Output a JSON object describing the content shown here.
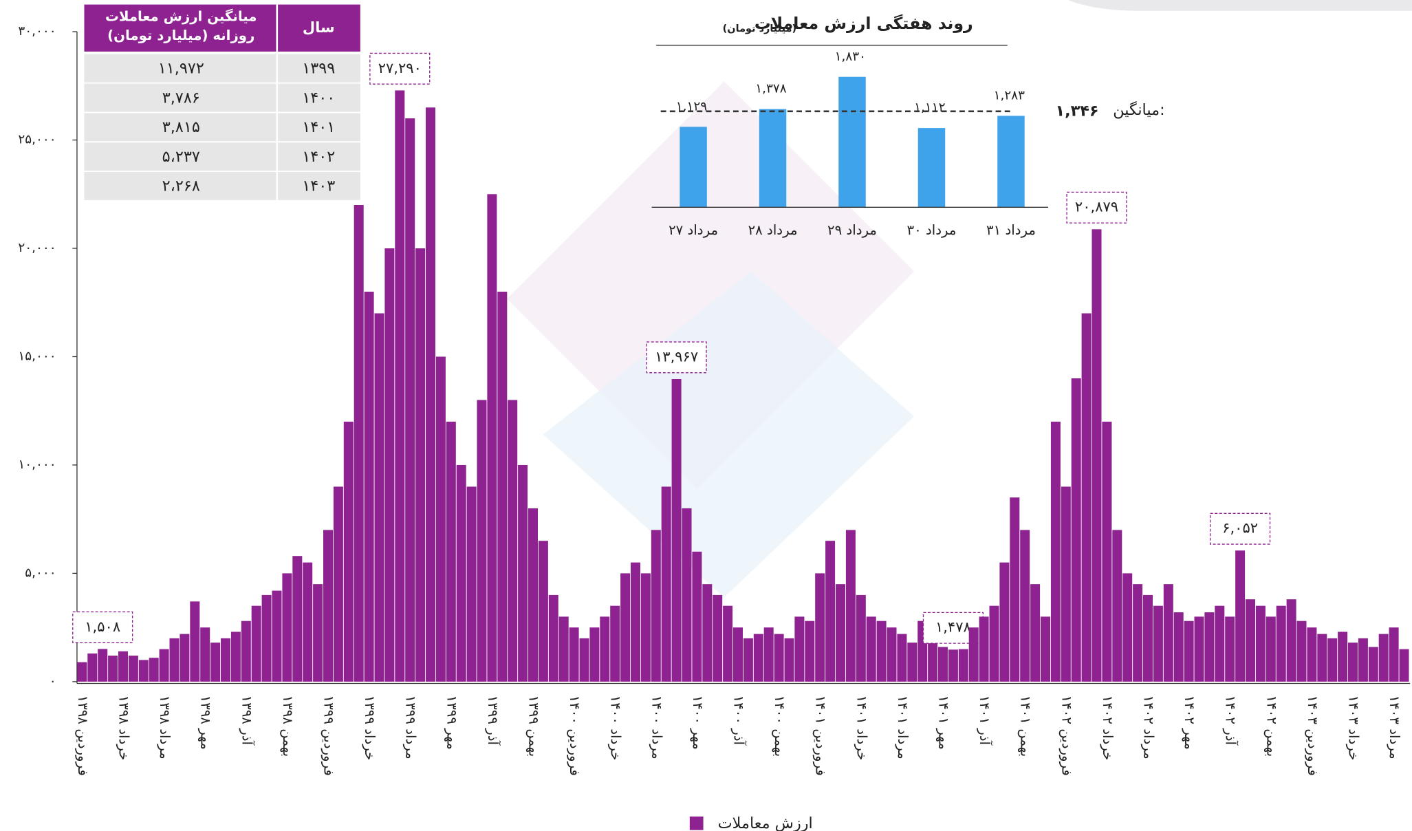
{
  "chart_data": [
    {
      "type": "bar",
      "legend": "bottom",
      "ylim": [
        0,
        30000
      ],
      "yticks": [
        {
          "value": 0,
          "label": "۰"
        },
        {
          "value": 5000,
          "label": "۵,۰۰۰"
        },
        {
          "value": 10000,
          "label": "۱۰,۰۰۰"
        },
        {
          "value": 15000,
          "label": "۱۵,۰۰۰"
        },
        {
          "value": 20000,
          "label": "۲۰,۰۰۰"
        },
        {
          "value": 25000,
          "label": "۲۵,۰۰۰"
        },
        {
          "value": 30000,
          "label": "۳۰,۰۰۰"
        }
      ],
      "categories": [
        "فروردین ۱۳۹۸",
        null,
        null,
        null,
        "خرداد ۱۳۹۸",
        null,
        null,
        null,
        "مرداد ۱۳۹۸",
        null,
        null,
        null,
        "مهر ۱۳۹۸",
        null,
        null,
        null,
        "آذر ۱۳۹۸",
        null,
        null,
        null,
        "بهمن ۱۳۹۸",
        null,
        null,
        null,
        "فروردین ۱۳۹۹",
        null,
        null,
        null,
        "خرداد ۱۳۹۹",
        null,
        null,
        null,
        "مرداد ۱۳۹۹",
        null,
        null,
        null,
        "مهر ۱۳۹۹",
        null,
        null,
        null,
        "آذر ۱۳۹۹",
        null,
        null,
        null,
        "بهمن ۱۳۹۹",
        null,
        null,
        null,
        "فروردین ۱۴۰۰",
        null,
        null,
        null,
        "خرداد ۱۴۰۰",
        null,
        null,
        null,
        "مرداد ۱۴۰۰",
        null,
        null,
        null,
        "مهر ۱۴۰۰",
        null,
        null,
        null,
        "آذر ۱۴۰۰",
        null,
        null,
        null,
        "بهمن ۱۴۰۰",
        null,
        null,
        null,
        "فروردین ۱۴۰۱",
        null,
        null,
        null,
        "خرداد ۱۴۰۱",
        null,
        null,
        null,
        "مرداد ۱۴۰۱",
        null,
        null,
        null,
        "مهر ۱۴۰۱",
        null,
        null,
        null,
        "آذر ۱۴۰۱",
        null,
        null,
        null,
        "بهمن ۱۴۰۱",
        null,
        null,
        null,
        "فروردین ۱۴۰۲",
        null,
        null,
        null,
        "خرداد ۱۴۰۲",
        null,
        null,
        null,
        "مرداد ۱۴۰۲",
        null,
        null,
        null,
        "مهر ۱۴۰۲",
        null,
        null,
        null,
        "آذر ۱۴۰۲",
        null,
        null,
        null,
        "بهمن ۱۴۰۲",
        null,
        null,
        null,
        "فروردین ۱۴۰۳",
        null,
        null,
        null,
        "خرداد ۱۴۰۳",
        null,
        null,
        null,
        "مرداد ۱۴۰۳",
        null
      ],
      "series": [
        {
          "name": "ارزش معاملات",
          "color": "#8e2290",
          "values": [
            900,
            1300,
            1508,
            1200,
            1400,
            1200,
            1000,
            1100,
            1500,
            2000,
            2200,
            3700,
            2500,
            1800,
            2000,
            2300,
            2800,
            3500,
            4000,
            4200,
            5000,
            5800,
            5500,
            4500,
            7000,
            9000,
            12000,
            22000,
            18000,
            17000,
            20000,
            27290,
            26000,
            20000,
            26500,
            15000,
            12000,
            10000,
            9000,
            13000,
            22500,
            18000,
            13000,
            10000,
            8000,
            6500,
            4000,
            3000,
            2500,
            2000,
            2500,
            3000,
            3500,
            5000,
            5500,
            5000,
            7000,
            9000,
            13967,
            8000,
            6000,
            4500,
            4000,
            3500,
            2500,
            2000,
            2200,
            2500,
            2200,
            2000,
            3000,
            2800,
            5000,
            6500,
            4500,
            7000,
            4000,
            3000,
            2800,
            2500,
            2200,
            1800,
            2800,
            2000,
            1600,
            1478,
            1500,
            2500,
            3000,
            3500,
            5500,
            8500,
            7000,
            4500,
            3000,
            12000,
            9000,
            14000,
            17000,
            20879,
            12000,
            7000,
            5000,
            4500,
            4000,
            3500,
            4500,
            3200,
            2800,
            3000,
            3200,
            3500,
            3000,
            6052,
            3800,
            3500,
            3000,
            3500,
            3800,
            2800,
            2500,
            2200,
            2000,
            2300,
            1800,
            2000,
            1600,
            2200,
            2500,
            1500
          ],
          "value_labels": [
            null,
            null,
            "۱,۵۰۸",
            null,
            null,
            null,
            null,
            null,
            null,
            null,
            null,
            null,
            null,
            null,
            null,
            null,
            null,
            null,
            null,
            null,
            null,
            null,
            null,
            null,
            null,
            null,
            null,
            null,
            null,
            null,
            null,
            "۲۷,۲۹۰",
            null,
            null,
            null,
            null,
            null,
            null,
            null,
            null,
            null,
            null,
            null,
            null,
            null,
            null,
            null,
            null,
            null,
            null,
            null,
            null,
            null,
            null,
            null,
            null,
            null,
            null,
            "۱۳,۹۶۷",
            null,
            null,
            null,
            null,
            null,
            null,
            null,
            null,
            null,
            null,
            null,
            null,
            null,
            null,
            null,
            null,
            null,
            null,
            null,
            null,
            null,
            null,
            null,
            null,
            null,
            null,
            "۱,۴۷۸",
            null,
            null,
            null,
            null,
            null,
            null,
            null,
            null,
            null,
            null,
            null,
            null,
            null,
            "۲۰,۸۷۹",
            null,
            null,
            null,
            null,
            null,
            null,
            null,
            null,
            null,
            null,
            null,
            null,
            null,
            "۶,۰۵۲",
            null,
            null,
            null,
            null,
            null,
            null,
            null,
            null,
            null,
            null,
            null,
            null,
            null,
            null,
            null,
            null
          ]
        }
      ]
    },
    {
      "type": "bar",
      "title": "روند هفتگی ارزش معاملات",
      "subtitle": "(میلیارد تومان)",
      "ylim": [
        0,
        2000
      ],
      "categories": [
        "۲۷ مرداد",
        "۲۸ مرداد",
        "۲۹ مرداد",
        "۳۰ مرداد",
        "۳۱ مرداد"
      ],
      "values": [
        1129,
        1378,
        1830,
        1112,
        1283
      ],
      "value_labels": [
        "۱,۱۲۹",
        "۱,۳۷۸",
        "۱,۸۳۰",
        "۱,۱۱۲",
        "۱,۲۸۳"
      ],
      "color": "#3ea3ea",
      "average": 1346,
      "average_title": "میانگین:",
      "average_label": "۱,۳۴۶"
    }
  ],
  "table": {
    "header": [
      "سال",
      [
        "میانگین ارزش معاملات",
        "روزانه (میلیارد تومان)"
      ]
    ],
    "rows": [
      [
        "۱۳۹۹",
        "۱۱,۹۷۲"
      ],
      [
        "۱۴۰۰",
        "۳,۷۸۶"
      ],
      [
        "۱۴۰۱",
        "۳,۸۱۵"
      ],
      [
        "۱۴۰۲",
        "۵،۲۳۷"
      ],
      [
        "۱۴۰۳",
        "۲،۲۶۸"
      ]
    ]
  }
}
